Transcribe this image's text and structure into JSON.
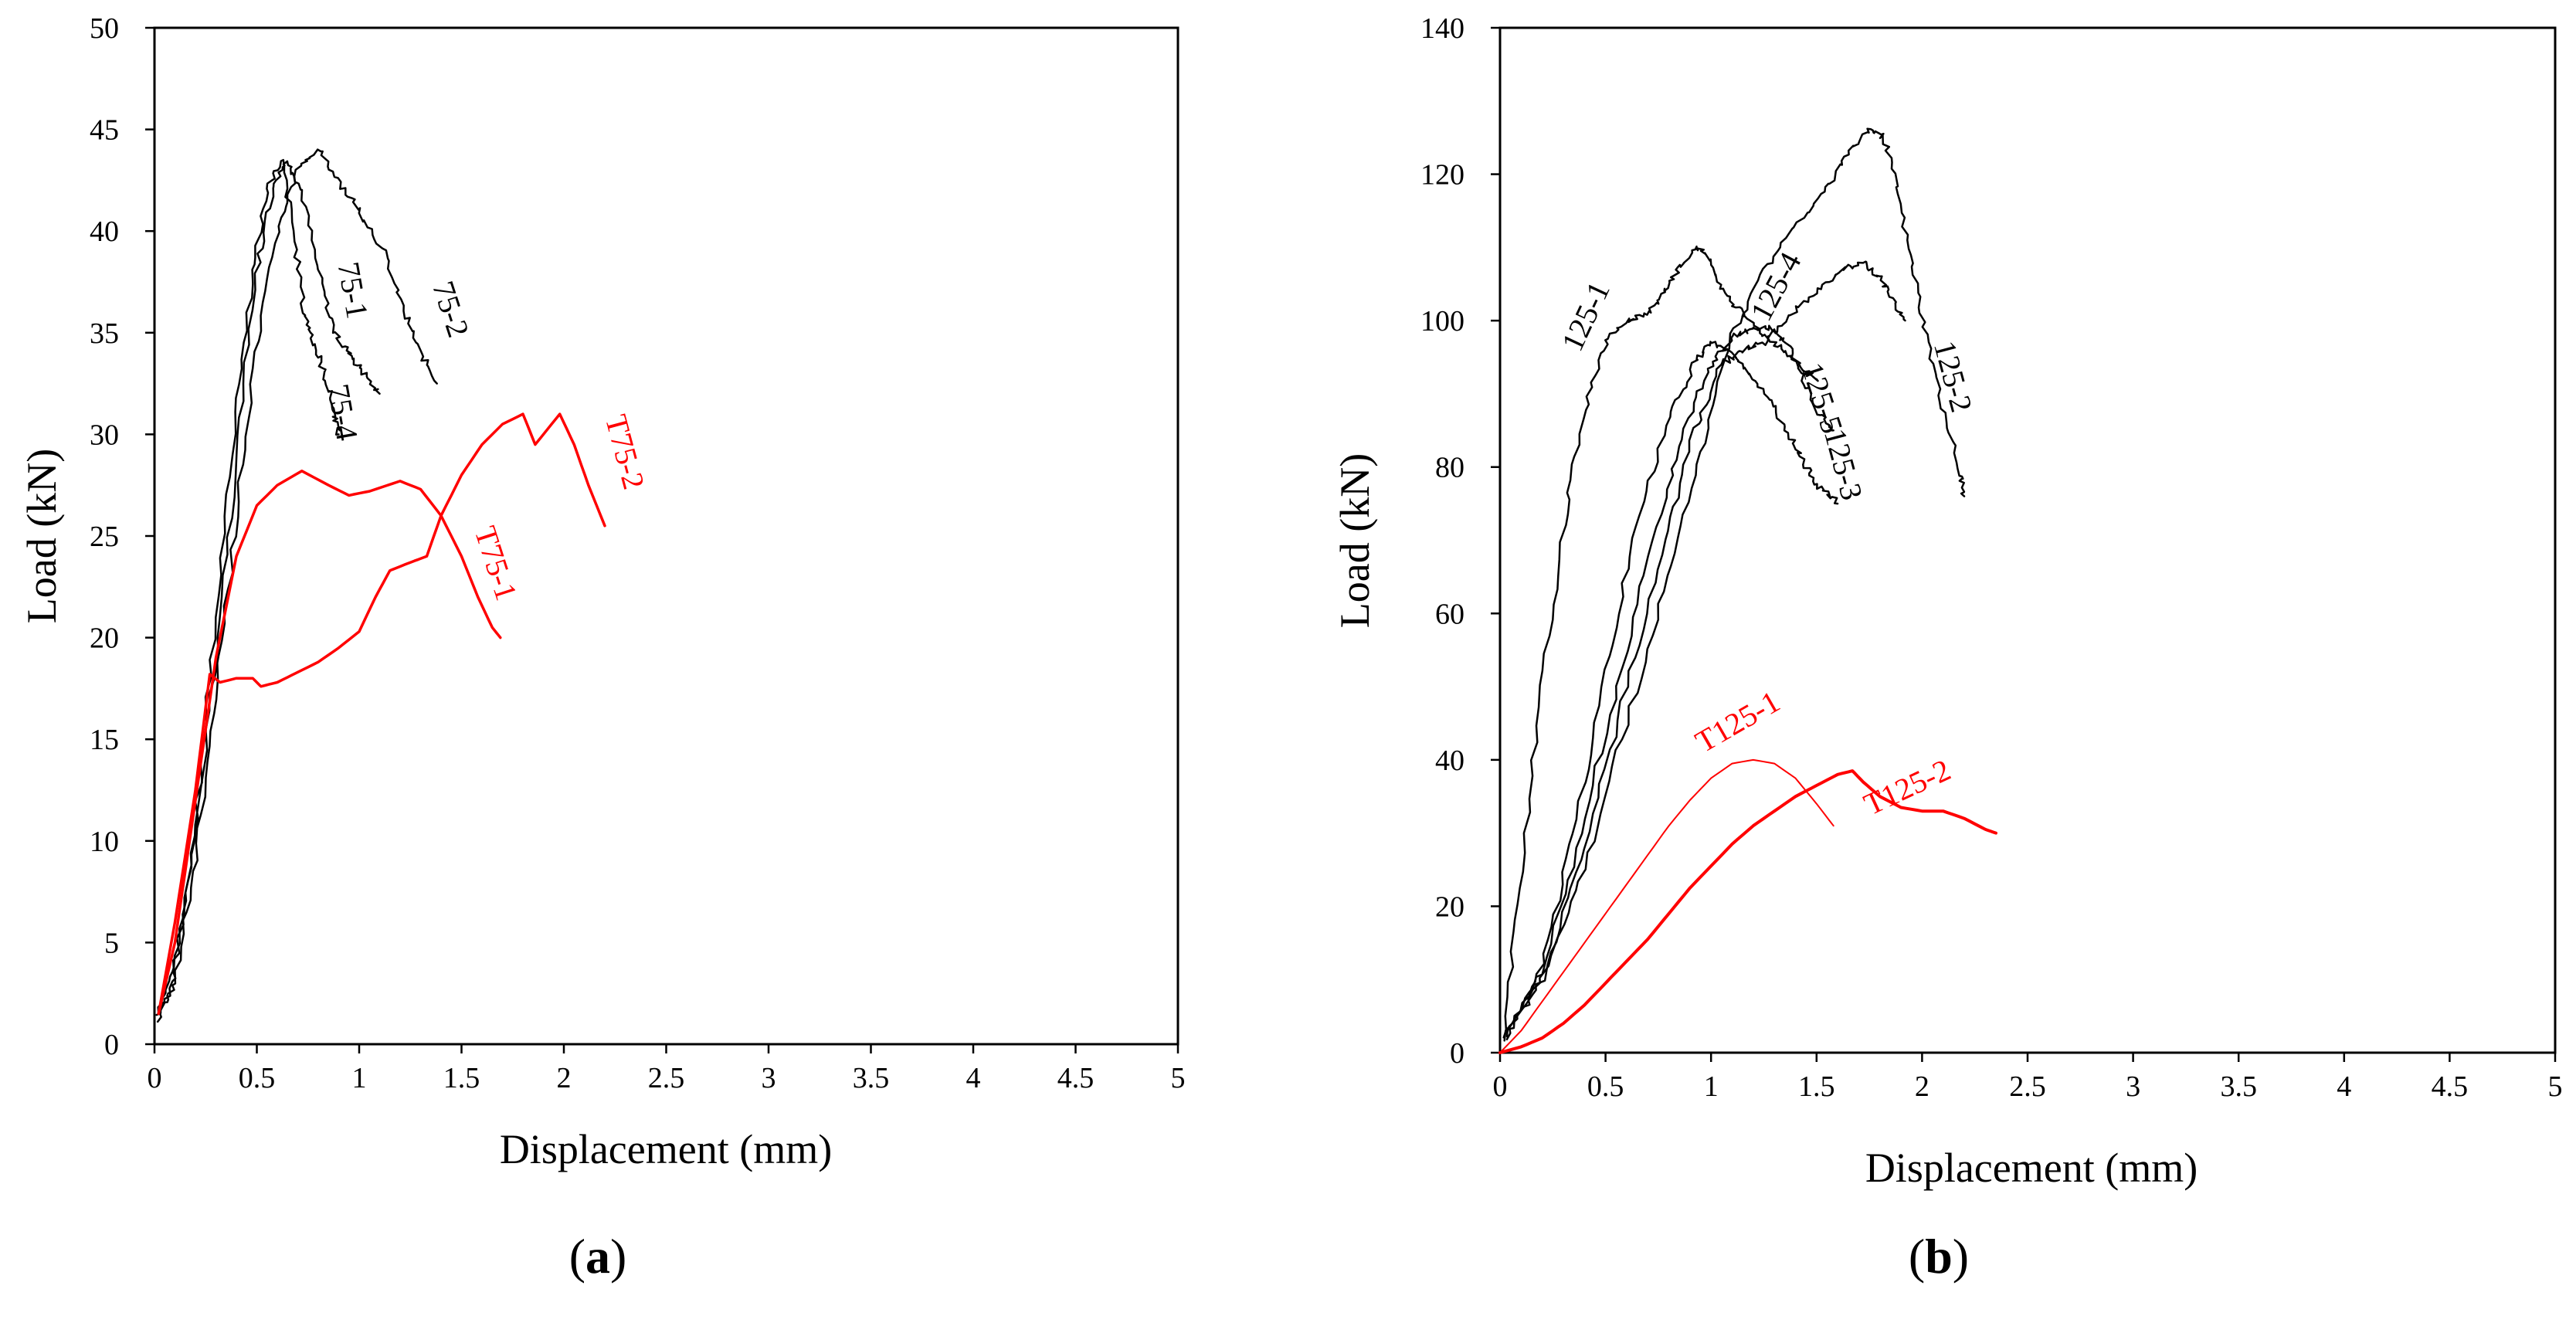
{
  "chart_data": [
    {
      "type": "line",
      "panel_label": "(a)",
      "panel_letter": "a",
      "xlabel": "Displacement (mm)",
      "ylabel": "Load (kN)",
      "xlim": [
        0,
        5
      ],
      "ylim": [
        0,
        50
      ],
      "xticks": [
        0,
        0.5,
        1,
        1.5,
        2,
        2.5,
        3,
        3.5,
        4,
        4.5,
        5
      ],
      "xtick_labels": [
        "0",
        "0.5",
        "1",
        "1.5",
        "2",
        "2.5",
        "3",
        "3.5",
        "4",
        "4.5",
        "5"
      ],
      "yticks": [
        0,
        5,
        10,
        15,
        20,
        25,
        30,
        35,
        40,
        45,
        50
      ],
      "ytick_labels": [
        "0",
        "5",
        "10",
        "15",
        "20",
        "25",
        "30",
        "35",
        "40",
        "45",
        "50"
      ],
      "series": [
        {
          "name": "75-1",
          "color": "#000000",
          "width": 2.5,
          "noisy": true,
          "points": [
            [
              0.02,
              1.5
            ],
            [
              0.1,
              4
            ],
            [
              0.2,
              10
            ],
            [
              0.3,
              19
            ],
            [
              0.4,
              29
            ],
            [
              0.5,
              38
            ],
            [
              0.58,
              42
            ],
            [
              0.65,
              43.5
            ],
            [
              0.72,
              42
            ],
            [
              0.8,
              38
            ],
            [
              0.88,
              35
            ],
            [
              0.95,
              34
            ],
            [
              1.02,
              33
            ],
            [
              1.1,
              32
            ]
          ]
        },
        {
          "name": "75-2",
          "color": "#000000",
          "width": 2.5,
          "noisy": true,
          "points": [
            [
              0.02,
              1.5
            ],
            [
              0.1,
              3
            ],
            [
              0.2,
              9
            ],
            [
              0.3,
              17
            ],
            [
              0.4,
              26
            ],
            [
              0.5,
              34
            ],
            [
              0.6,
              40
            ],
            [
              0.7,
              43
            ],
            [
              0.8,
              44
            ],
            [
              0.9,
              42.5
            ],
            [
              1.0,
              41
            ],
            [
              1.12,
              39
            ],
            [
              1.22,
              36
            ],
            [
              1.3,
              34
            ],
            [
              1.38,
              32.5
            ]
          ]
        },
        {
          "name": "75-4",
          "color": "#000000",
          "width": 2.5,
          "noisy": true,
          "points": [
            [
              0.02,
              1
            ],
            [
              0.1,
              3.5
            ],
            [
              0.2,
              11
            ],
            [
              0.3,
              21
            ],
            [
              0.4,
              31
            ],
            [
              0.48,
              38
            ],
            [
              0.55,
              42
            ],
            [
              0.62,
              43.5
            ],
            [
              0.68,
              40
            ],
            [
              0.73,
              36
            ],
            [
              0.78,
              34.5
            ],
            [
              0.83,
              33
            ],
            [
              0.88,
              31
            ],
            [
              0.9,
              30
            ]
          ]
        },
        {
          "name": "T75-1",
          "color": "#ff0000",
          "width": 3.5,
          "noisy": false,
          "points": [
            [
              0.02,
              1.5
            ],
            [
              0.1,
              5
            ],
            [
              0.2,
              12
            ],
            [
              0.3,
              19
            ],
            [
              0.4,
              24
            ],
            [
              0.5,
              26.5
            ],
            [
              0.6,
              27.5
            ],
            [
              0.72,
              28.2
            ],
            [
              0.85,
              27.5
            ],
            [
              0.95,
              27
            ],
            [
              1.05,
              27.2
            ],
            [
              1.2,
              27.7
            ],
            [
              1.3,
              27.3
            ],
            [
              1.4,
              26
            ],
            [
              1.5,
              24
            ],
            [
              1.58,
              22
            ],
            [
              1.65,
              20.5
            ],
            [
              1.69,
              20
            ]
          ]
        },
        {
          "name": "T75-2",
          "color": "#ff0000",
          "width": 3.5,
          "noisy": false,
          "points": [
            [
              0.02,
              1.5
            ],
            [
              0.1,
              6
            ],
            [
              0.2,
              12.5
            ],
            [
              0.27,
              18.2
            ],
            [
              0.32,
              17.8
            ],
            [
              0.4,
              18
            ],
            [
              0.48,
              18
            ],
            [
              0.52,
              17.6
            ],
            [
              0.6,
              17.8
            ],
            [
              0.7,
              18.3
            ],
            [
              0.8,
              18.8
            ],
            [
              0.9,
              19.5
            ],
            [
              1.0,
              20.3
            ],
            [
              1.08,
              22
            ],
            [
              1.15,
              23.3
            ],
            [
              1.25,
              23.7
            ],
            [
              1.33,
              24
            ],
            [
              1.4,
              26
            ],
            [
              1.5,
              28
            ],
            [
              1.6,
              29.5
            ],
            [
              1.7,
              30.5
            ],
            [
              1.8,
              31
            ],
            [
              1.86,
              29.5
            ],
            [
              1.9,
              30
            ],
            [
              1.98,
              31
            ],
            [
              2.05,
              29.5
            ],
            [
              2.12,
              27.5
            ],
            [
              2.2,
              25.5
            ]
          ]
        }
      ]
    },
    {
      "type": "line",
      "panel_label": "(b)",
      "panel_letter": "b",
      "xlabel": "Displacement (mm)",
      "ylabel": "Load (kN)",
      "xlim": [
        0,
        5
      ],
      "ylim": [
        0,
        140
      ],
      "xticks": [
        0,
        0.5,
        1,
        1.5,
        2,
        2.5,
        3,
        3.5,
        4,
        4.5,
        5
      ],
      "xtick_labels": [
        "0",
        "0.5",
        "1",
        "1.5",
        "2",
        "2.5",
        "3",
        "3.5",
        "4",
        "4.5",
        "5"
      ],
      "yticks": [
        0,
        20,
        40,
        60,
        80,
        100,
        120,
        140
      ],
      "ytick_labels": [
        "0",
        "20",
        "40",
        "60",
        "80",
        "100",
        "120",
        "140"
      ],
      "series": [
        {
          "name": "125-1",
          "color": "#000000",
          "width": 2.5,
          "noisy": true,
          "points": [
            [
              0.02,
              3
            ],
            [
              0.1,
              25
            ],
            [
              0.2,
              50
            ],
            [
              0.3,
              72
            ],
            [
              0.4,
              88
            ],
            [
              0.5,
              97
            ],
            [
              0.6,
              100
            ],
            [
              0.7,
              101
            ],
            [
              0.78,
              104
            ],
            [
              0.85,
              107
            ],
            [
              0.92,
              110
            ],
            [
              0.98,
              109
            ],
            [
              1.05,
              104
            ],
            [
              1.15,
              101
            ],
            [
              1.25,
              98
            ],
            [
              1.35,
              96
            ],
            [
              1.45,
              93
            ],
            [
              1.5,
              92
            ]
          ]
        },
        {
          "name": "125-2",
          "color": "#000000",
          "width": 2.5,
          "noisy": true,
          "points": [
            [
              0.02,
              2
            ],
            [
              0.2,
              10
            ],
            [
              0.4,
              25
            ],
            [
              0.6,
              45
            ],
            [
              0.8,
              65
            ],
            [
              0.95,
              82
            ],
            [
              1.1,
              98
            ],
            [
              1.25,
              107
            ],
            [
              1.4,
              113
            ],
            [
              1.55,
              118
            ],
            [
              1.65,
              123
            ],
            [
              1.75,
              126
            ],
            [
              1.82,
              125
            ],
            [
              1.88,
              118
            ],
            [
              1.95,
              108
            ],
            [
              2.02,
              98
            ],
            [
              2.1,
              88
            ],
            [
              2.18,
              79
            ],
            [
              2.2,
              76
            ]
          ]
        },
        {
          "name": "125-3",
          "color": "#000000",
          "width": 2.5,
          "noisy": true,
          "points": [
            [
              0.02,
              2
            ],
            [
              0.2,
              12
            ],
            [
              0.35,
              30
            ],
            [
              0.5,
              52
            ],
            [
              0.65,
              72
            ],
            [
              0.8,
              87
            ],
            [
              0.92,
              94
            ],
            [
              1.0,
              97
            ],
            [
              1.08,
              96
            ],
            [
              1.18,
              93
            ],
            [
              1.28,
              89
            ],
            [
              1.38,
              84
            ],
            [
              1.45,
              80
            ],
            [
              1.52,
              77
            ],
            [
              1.6,
              75
            ]
          ]
        },
        {
          "name": "125-4",
          "color": "#000000",
          "width": 2.5,
          "noisy": true,
          "points": [
            [
              0.02,
              2
            ],
            [
              0.2,
              10
            ],
            [
              0.4,
              28
            ],
            [
              0.6,
              50
            ],
            [
              0.78,
              70
            ],
            [
              0.92,
              85
            ],
            [
              1.05,
              94
            ],
            [
              1.15,
              96
            ],
            [
              1.25,
              97
            ],
            [
              1.35,
              100
            ],
            [
              1.5,
              104
            ],
            [
              1.62,
              107
            ],
            [
              1.72,
              108
            ],
            [
              1.8,
              106
            ],
            [
              1.86,
              103
            ],
            [
              1.92,
              100
            ]
          ]
        },
        {
          "name": "125-5",
          "color": "#000000",
          "width": 2.5,
          "noisy": true,
          "points": [
            [
              0.02,
              2
            ],
            [
              0.2,
              11
            ],
            [
              0.4,
              32
            ],
            [
              0.6,
              55
            ],
            [
              0.78,
              76
            ],
            [
              0.92,
              89
            ],
            [
              1.02,
              95
            ],
            [
              1.12,
              98
            ],
            [
              1.2,
              99
            ],
            [
              1.28,
              99
            ],
            [
              1.36,
              97
            ],
            [
              1.44,
              92
            ],
            [
              1.52,
              87
            ],
            [
              1.58,
              85
            ]
          ]
        },
        {
          "name": "T125-1",
          "color": "#ff0000",
          "width": 2,
          "noisy": false,
          "points": [
            [
              0,
              0
            ],
            [
              0.1,
              3
            ],
            [
              0.2,
              7
            ],
            [
              0.3,
              11
            ],
            [
              0.4,
              15
            ],
            [
              0.5,
              19
            ],
            [
              0.6,
              23
            ],
            [
              0.7,
              27
            ],
            [
              0.8,
              31
            ],
            [
              0.9,
              34.5
            ],
            [
              1.0,
              37.5
            ],
            [
              1.1,
              39.5
            ],
            [
              1.2,
              40
            ],
            [
              1.3,
              39.5
            ],
            [
              1.4,
              37.5
            ],
            [
              1.5,
              34
            ],
            [
              1.58,
              31
            ]
          ]
        },
        {
          "name": "T125-2",
          "color": "#ff0000",
          "width": 4,
          "noisy": false,
          "points": [
            [
              0,
              0
            ],
            [
              0.1,
              0.8
            ],
            [
              0.2,
              2
            ],
            [
              0.3,
              4
            ],
            [
              0.4,
              6.5
            ],
            [
              0.5,
              9.5
            ],
            [
              0.6,
              12.5
            ],
            [
              0.7,
              15.5
            ],
            [
              0.8,
              19
            ],
            [
              0.9,
              22.5
            ],
            [
              1.0,
              25.5
            ],
            [
              1.1,
              28.5
            ],
            [
              1.2,
              31
            ],
            [
              1.3,
              33
            ],
            [
              1.4,
              35
            ],
            [
              1.5,
              36.5
            ],
            [
              1.6,
              38
            ],
            [
              1.67,
              38.5
            ],
            [
              1.72,
              37
            ],
            [
              1.8,
              35
            ],
            [
              1.9,
              33.5
            ],
            [
              2.0,
              33
            ],
            [
              2.1,
              33
            ],
            [
              2.2,
              32
            ],
            [
              2.3,
              30.5
            ],
            [
              2.35,
              30
            ]
          ]
        }
      ]
    }
  ]
}
